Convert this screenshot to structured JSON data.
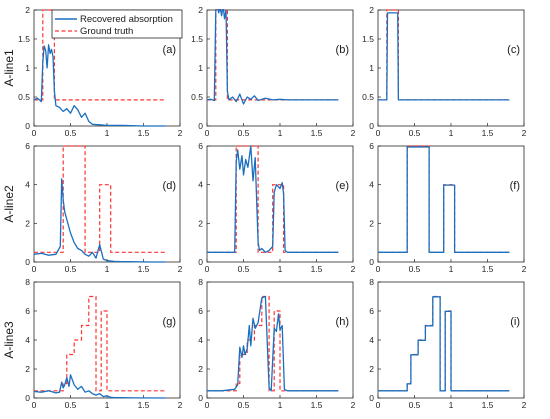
{
  "legend": {
    "recovered_label": "Recovered absorption",
    "ground_truth_label": "Ground truth",
    "recovered_color": "#1a6fbf",
    "ground_truth_color": "#ff3333"
  },
  "row_labels": [
    "A-line1",
    "A-line2",
    "A-line3"
  ],
  "chart_data": [
    {
      "type": "line",
      "panel": "(a)",
      "row": 0,
      "col": 0,
      "xlim": [
        0,
        2
      ],
      "ylim": [
        0,
        2
      ],
      "xticks": [
        0,
        0.5,
        1,
        1.5,
        2
      ],
      "yticks": [
        0,
        0.5,
        1,
        1.5,
        2
      ],
      "xticklabels": [
        "0",
        "0.5",
        "1",
        "1.5",
        "2"
      ],
      "yticklabels": [
        "0",
        "0.5",
        "1",
        "1.5",
        "2"
      ],
      "series": [
        {
          "role": "ground_truth",
          "x": [
            0,
            0.12,
            0.12,
            0.18,
            0.18,
            0.28,
            0.28,
            1.8
          ],
          "y": [
            0.45,
            0.45,
            2,
            2,
            2,
            2,
            0.45,
            0.45
          ]
        },
        {
          "role": "recovered",
          "x": [
            0,
            0.05,
            0.1,
            0.12,
            0.14,
            0.16,
            0.18,
            0.2,
            0.22,
            0.24,
            0.26,
            0.28,
            0.3,
            0.35,
            0.4,
            0.45,
            0.5,
            0.55,
            0.6,
            0.65,
            0.7,
            0.75,
            0.8,
            0.9,
            1.0,
            1.2,
            1.5,
            1.8
          ],
          "y": [
            0.45,
            0.48,
            0.42,
            1.1,
            1.38,
            1.3,
            1.0,
            1.4,
            1.25,
            1.32,
            1.2,
            0.6,
            0.35,
            0.32,
            0.25,
            0.3,
            0.22,
            0.35,
            0.28,
            0.15,
            0.22,
            0.08,
            0.03,
            0.02,
            0.01,
            0.01,
            0.0,
            0.0
          ]
        }
      ]
    },
    {
      "type": "line",
      "panel": "(b)",
      "row": 0,
      "col": 1,
      "xlim": [
        0,
        2
      ],
      "ylim": [
        0,
        2
      ],
      "xticks": [
        0,
        0.5,
        1,
        1.5,
        2
      ],
      "yticks": [
        0,
        0.5,
        1,
        1.5,
        2
      ],
      "xticklabels": [
        "0",
        "0.5",
        "1",
        "1.5",
        "2"
      ],
      "yticklabels": [
        "0",
        "0.5",
        "1",
        "1.5",
        "2"
      ],
      "series": [
        {
          "role": "ground_truth",
          "x": [
            0,
            0.12,
            0.12,
            0.28,
            0.28,
            1.8
          ],
          "y": [
            0.45,
            0.45,
            2,
            2,
            0.45,
            0.45
          ]
        },
        {
          "role": "recovered",
          "x": [
            0,
            0.05,
            0.1,
            0.12,
            0.14,
            0.16,
            0.18,
            0.2,
            0.22,
            0.24,
            0.26,
            0.28,
            0.3,
            0.35,
            0.4,
            0.45,
            0.5,
            0.55,
            0.6,
            0.65,
            0.7,
            0.8,
            0.9,
            1.0,
            1.1,
            1.2,
            1.5,
            1.8
          ],
          "y": [
            0.45,
            0.46,
            0.44,
            2.0,
            2.1,
            1.95,
            2.05,
            1.9,
            2.08,
            1.85,
            2.0,
            0.6,
            0.45,
            0.5,
            0.42,
            0.55,
            0.38,
            0.5,
            0.46,
            0.52,
            0.44,
            0.48,
            0.45,
            0.46,
            0.45,
            0.45,
            0.45,
            0.45
          ]
        }
      ]
    },
    {
      "type": "line",
      "panel": "(c)",
      "row": 0,
      "col": 2,
      "xlim": [
        0,
        2
      ],
      "ylim": [
        0,
        2
      ],
      "xticks": [
        0,
        0.5,
        1,
        1.5,
        2
      ],
      "yticks": [
        0,
        0.5,
        1,
        1.5,
        2
      ],
      "xticklabels": [
        "0",
        "0.5",
        "1",
        "1.5",
        "2"
      ],
      "yticklabels": [
        "0",
        "0.5",
        "1",
        "1.5",
        "2"
      ],
      "series": [
        {
          "role": "ground_truth",
          "x": [
            0,
            0.12,
            0.12,
            0.28,
            0.28,
            1.8
          ],
          "y": [
            0.45,
            0.45,
            2,
            2,
            0.45,
            0.45
          ]
        },
        {
          "role": "recovered",
          "x": [
            0,
            0.12,
            0.13,
            0.27,
            0.28,
            1.8
          ],
          "y": [
            0.45,
            0.45,
            1.95,
            1.95,
            0.45,
            0.45
          ]
        }
      ]
    },
    {
      "type": "line",
      "panel": "(d)",
      "row": 1,
      "col": 0,
      "xlim": [
        0,
        2
      ],
      "ylim": [
        0,
        6
      ],
      "xticks": [
        0,
        0.5,
        1,
        1.5,
        2
      ],
      "yticks": [
        0,
        2,
        4,
        6
      ],
      "xticklabels": [
        "0",
        "0.5",
        "1",
        "1.5",
        "2"
      ],
      "yticklabels": [
        "0",
        "2",
        "4",
        "6"
      ],
      "series": [
        {
          "role": "ground_truth",
          "x": [
            0,
            0.4,
            0.4,
            0.7,
            0.7,
            0.9,
            0.9,
            1.05,
            1.05,
            1.8
          ],
          "y": [
            0.5,
            0.5,
            6,
            6,
            0.5,
            0.5,
            4,
            4,
            0.5,
            0.5
          ]
        },
        {
          "role": "recovered",
          "x": [
            0,
            0.1,
            0.2,
            0.3,
            0.36,
            0.38,
            0.4,
            0.42,
            0.45,
            0.5,
            0.55,
            0.6,
            0.65,
            0.7,
            0.75,
            0.8,
            0.85,
            0.9,
            0.95,
            1.0,
            1.05,
            1.1,
            1.2,
            1.4,
            1.6,
            1.8
          ],
          "y": [
            0.4,
            0.45,
            0.35,
            0.4,
            0.8,
            4.3,
            3.2,
            2.6,
            2.2,
            1.5,
            1.0,
            0.7,
            0.6,
            0.4,
            0.3,
            0.5,
            0.2,
            0.9,
            0.15,
            0.08,
            0.05,
            0.03,
            0.02,
            0.01,
            0.0,
            0.0
          ]
        }
      ]
    },
    {
      "type": "line",
      "panel": "(e)",
      "row": 1,
      "col": 1,
      "xlim": [
        0,
        2
      ],
      "ylim": [
        0,
        6
      ],
      "xticks": [
        0,
        0.5,
        1,
        1.5,
        2
      ],
      "yticks": [
        0,
        2,
        4,
        6
      ],
      "xticklabels": [
        "0",
        "0.5",
        "1",
        "1.5",
        "2"
      ],
      "yticklabels": [
        "0",
        "2",
        "4",
        "6"
      ],
      "series": [
        {
          "role": "ground_truth",
          "x": [
            0,
            0.4,
            0.4,
            0.7,
            0.7,
            0.9,
            0.9,
            1.05,
            1.05,
            1.8
          ],
          "y": [
            0.5,
            0.5,
            6,
            6,
            0.5,
            0.5,
            4,
            4,
            0.5,
            0.5
          ]
        },
        {
          "role": "recovered",
          "x": [
            0,
            0.2,
            0.38,
            0.4,
            0.42,
            0.45,
            0.48,
            0.5,
            0.53,
            0.56,
            0.6,
            0.63,
            0.66,
            0.7,
            0.72,
            0.75,
            0.8,
            0.85,
            0.9,
            0.92,
            0.95,
            1.0,
            1.03,
            1.05,
            1.07,
            1.1,
            1.3,
            1.8
          ],
          "y": [
            0.5,
            0.5,
            0.5,
            5.2,
            5.8,
            4.8,
            5.5,
            4.5,
            5.3,
            4.9,
            6.0,
            4.2,
            5.4,
            1.0,
            0.6,
            0.7,
            0.5,
            0.6,
            0.8,
            3.6,
            4.0,
            3.8,
            4.1,
            3.5,
            0.6,
            0.5,
            0.5,
            0.5
          ]
        }
      ]
    },
    {
      "type": "line",
      "panel": "(f)",
      "row": 1,
      "col": 2,
      "xlim": [
        0,
        2
      ],
      "ylim": [
        0,
        6
      ],
      "xticks": [
        0,
        0.5,
        1,
        1.5,
        2
      ],
      "yticks": [
        0,
        2,
        4,
        6
      ],
      "xticklabels": [
        "0",
        "0.5",
        "1",
        "1.5",
        "2"
      ],
      "yticklabels": [
        "0",
        "2",
        "4",
        "6"
      ],
      "series": [
        {
          "role": "ground_truth",
          "x": [
            0,
            0.4,
            0.4,
            0.7,
            0.7,
            0.9,
            0.9,
            1.05,
            1.05,
            1.8
          ],
          "y": [
            0.5,
            0.5,
            6,
            6,
            0.5,
            0.5,
            4,
            4,
            0.5,
            0.5
          ]
        },
        {
          "role": "recovered",
          "x": [
            0,
            0.4,
            0.4,
            0.7,
            0.7,
            0.9,
            0.9,
            1.05,
            1.05,
            1.8
          ],
          "y": [
            0.5,
            0.5,
            5.95,
            5.95,
            0.5,
            0.5,
            3.98,
            3.98,
            0.5,
            0.5
          ]
        }
      ]
    },
    {
      "type": "line",
      "panel": "(g)",
      "row": 2,
      "col": 0,
      "xlim": [
        0,
        2
      ],
      "ylim": [
        0,
        8
      ],
      "xticks": [
        0,
        0.5,
        1,
        1.5,
        2
      ],
      "yticks": [
        0,
        2,
        4,
        6,
        8
      ],
      "xticklabels": [
        "0",
        "0.5",
        "1",
        "1.5",
        "2"
      ],
      "yticklabels": [
        "0",
        "2",
        "4",
        "6",
        "8"
      ],
      "series": [
        {
          "role": "ground_truth",
          "x": [
            0,
            0.4,
            0.4,
            0.45,
            0.45,
            0.55,
            0.55,
            0.65,
            0.65,
            0.75,
            0.75,
            0.85,
            0.85,
            0.92,
            0.92,
            1.0,
            1.0,
            1.08,
            1.08,
            1.8
          ],
          "y": [
            0.5,
            0.5,
            1,
            1,
            3,
            3,
            4,
            4,
            5,
            5,
            7,
            7,
            0.5,
            0.5,
            6,
            6,
            0.5,
            0.5,
            0.5,
            0.5
          ]
        },
        {
          "role": "recovered",
          "x": [
            0,
            0.1,
            0.2,
            0.3,
            0.35,
            0.38,
            0.4,
            0.42,
            0.45,
            0.48,
            0.5,
            0.55,
            0.6,
            0.65,
            0.7,
            0.75,
            0.8,
            0.85,
            0.9,
            0.95,
            1.0,
            1.05,
            1.1,
            1.2,
            1.4,
            1.8
          ],
          "y": [
            0.45,
            0.4,
            0.5,
            0.35,
            0.4,
            1.1,
            0.7,
            0.9,
            1.4,
            0.8,
            1.6,
            0.9,
            0.6,
            0.8,
            0.4,
            0.5,
            0.3,
            0.2,
            0.3,
            0.1,
            0.15,
            0.05,
            0.03,
            0.02,
            0.01,
            0.0
          ]
        }
      ]
    },
    {
      "type": "line",
      "panel": "(h)",
      "row": 2,
      "col": 1,
      "xlim": [
        0,
        2
      ],
      "ylim": [
        0,
        8
      ],
      "xticks": [
        0,
        0.5,
        1,
        1.5,
        2
      ],
      "yticks": [
        0,
        2,
        4,
        6,
        8
      ],
      "xticklabels": [
        "0",
        "0.5",
        "1",
        "1.5",
        "2"
      ],
      "yticklabels": [
        "0",
        "2",
        "4",
        "6",
        "8"
      ],
      "series": [
        {
          "role": "ground_truth",
          "x": [
            0,
            0.4,
            0.4,
            0.45,
            0.45,
            0.55,
            0.55,
            0.65,
            0.65,
            0.75,
            0.75,
            0.85,
            0.85,
            0.92,
            0.92,
            1.0,
            1.0,
            1.08,
            1.08,
            1.8
          ],
          "y": [
            0.5,
            0.5,
            1,
            1,
            3,
            3,
            4,
            4,
            5,
            5,
            7,
            7,
            0.5,
            0.5,
            6,
            6,
            0.5,
            0.5,
            0.5,
            0.5
          ]
        },
        {
          "role": "recovered",
          "x": [
            0,
            0.2,
            0.38,
            0.42,
            0.45,
            0.48,
            0.5,
            0.52,
            0.55,
            0.58,
            0.6,
            0.63,
            0.66,
            0.7,
            0.75,
            0.8,
            0.85,
            0.88,
            0.92,
            0.95,
            0.98,
            1.0,
            1.03,
            1.06,
            1.1,
            1.3,
            1.8
          ],
          "y": [
            0.5,
            0.5,
            0.6,
            0.9,
            3.5,
            2.8,
            3.6,
            3.0,
            3.4,
            5.0,
            3.6,
            5.5,
            4.8,
            5.2,
            6.9,
            7.0,
            0.7,
            0.5,
            4.8,
            4.6,
            5.8,
            4.7,
            5.0,
            0.6,
            0.5,
            0.5,
            0.5
          ]
        }
      ]
    },
    {
      "type": "line",
      "panel": "(i)",
      "row": 2,
      "col": 2,
      "xlim": [
        0,
        2
      ],
      "ylim": [
        0,
        8
      ],
      "xticks": [
        0,
        0.5,
        1,
        1.5,
        2
      ],
      "yticks": [
        0,
        2,
        4,
        6,
        8
      ],
      "xticklabels": [
        "0",
        "0.5",
        "1",
        "1.5",
        "2"
      ],
      "yticklabels": [
        "0",
        "2",
        "4",
        "6",
        "8"
      ],
      "series": [
        {
          "role": "ground_truth",
          "x": [
            0,
            0.4,
            0.4,
            0.45,
            0.45,
            0.55,
            0.55,
            0.65,
            0.65,
            0.75,
            0.75,
            0.85,
            0.85,
            0.92,
            0.92,
            1.0,
            1.0,
            1.08,
            1.08,
            1.8
          ],
          "y": [
            0.5,
            0.5,
            1,
            1,
            3,
            3,
            4,
            4,
            5,
            5,
            7,
            7,
            0.5,
            0.5,
            6,
            6,
            0.5,
            0.5,
            0.5,
            0.5
          ]
        },
        {
          "role": "recovered",
          "x": [
            0,
            0.4,
            0.4,
            0.45,
            0.45,
            0.55,
            0.55,
            0.65,
            0.65,
            0.75,
            0.75,
            0.85,
            0.85,
            0.92,
            0.92,
            1.0,
            1.0,
            1.8
          ],
          "y": [
            0.5,
            0.5,
            0.98,
            0.98,
            2.98,
            2.98,
            3.98,
            3.98,
            4.98,
            4.98,
            6.98,
            6.98,
            0.5,
            0.5,
            5.98,
            5.98,
            0.5,
            0.5
          ]
        }
      ]
    }
  ]
}
